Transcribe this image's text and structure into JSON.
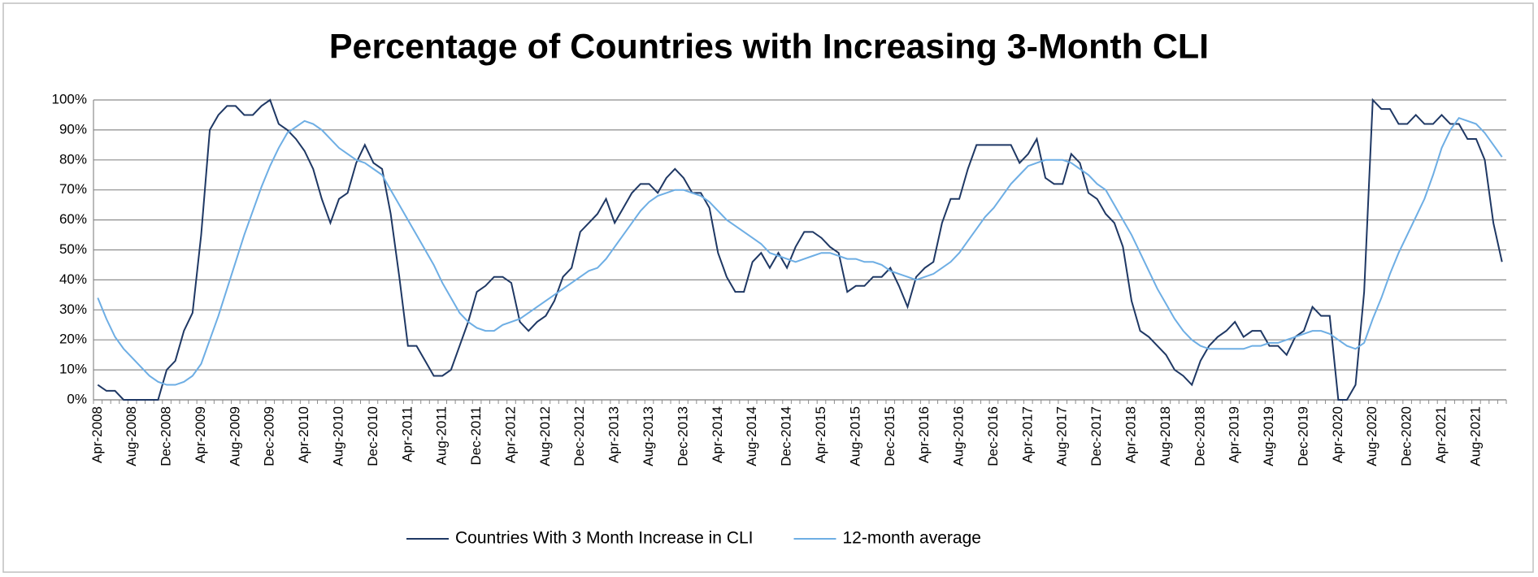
{
  "chart_data": {
    "type": "line",
    "title": "Percentage of Countries with Increasing 3-Month CLI",
    "categories": [
      "Apr-2008",
      null,
      null,
      null,
      "Aug-2008",
      null,
      null,
      null,
      "Dec-2008",
      null,
      null,
      null,
      "Apr-2009",
      null,
      null,
      null,
      "Aug-2009",
      null,
      null,
      null,
      "Dec-2009",
      null,
      null,
      null,
      "Apr-2010",
      null,
      null,
      null,
      "Aug-2010",
      null,
      null,
      null,
      "Dec-2010",
      null,
      null,
      null,
      "Apr-2011",
      null,
      null,
      null,
      "Aug-2011",
      null,
      null,
      null,
      "Dec-2011",
      null,
      null,
      null,
      "Apr-2012",
      null,
      null,
      null,
      "Aug-2012",
      null,
      null,
      null,
      "Dec-2012",
      null,
      null,
      null,
      "Apr-2013",
      null,
      null,
      null,
      "Aug-2013",
      null,
      null,
      null,
      "Dec-2013",
      null,
      null,
      null,
      "Apr-2014",
      null,
      null,
      null,
      "Aug-2014",
      null,
      null,
      null,
      "Dec-2014",
      null,
      null,
      null,
      "Apr-2015",
      null,
      null,
      null,
      "Aug-2015",
      null,
      null,
      null,
      "Dec-2015",
      null,
      null,
      null,
      "Apr-2016",
      null,
      null,
      null,
      "Aug-2016",
      null,
      null,
      null,
      "Dec-2016",
      null,
      null,
      null,
      "Apr-2017",
      null,
      null,
      null,
      "Aug-2017",
      null,
      null,
      null,
      "Dec-2017",
      null,
      null,
      null,
      "Apr-2018",
      null,
      null,
      null,
      "Aug-2018",
      null,
      null,
      null,
      "Dec-2018",
      null,
      null,
      null,
      "Apr-2019",
      null,
      null,
      null,
      "Aug-2019",
      null,
      null,
      null,
      "Dec-2019",
      null,
      null,
      null,
      "Apr-2020",
      null,
      null,
      null,
      "Aug-2020",
      null,
      null,
      null,
      "Dec-2020",
      null,
      null,
      null,
      "Apr-2021",
      null,
      null,
      null,
      "Aug-2021",
      null,
      null,
      null
    ],
    "series": [
      {
        "name": "Countries With 3 Month Increase in CLI",
        "color": "#1f3864",
        "values": [
          5,
          3,
          3,
          0,
          0,
          0,
          0,
          0,
          10,
          13,
          23,
          29,
          55,
          90,
          95,
          98,
          98,
          95,
          95,
          98,
          100,
          92,
          90,
          87,
          83,
          77,
          67,
          59,
          67,
          69,
          79,
          85,
          79,
          77,
          62,
          41,
          18,
          18,
          13,
          8,
          8,
          10,
          18,
          26,
          36,
          38,
          41,
          41,
          39,
          26,
          23,
          26,
          28,
          33,
          41,
          44,
          56,
          59,
          62,
          67,
          59,
          64,
          69,
          72,
          72,
          69,
          74,
          77,
          74,
          69,
          69,
          64,
          49,
          41,
          36,
          36,
          46,
          49,
          44,
          49,
          44,
          51,
          56,
          56,
          54,
          51,
          49,
          36,
          38,
          38,
          41,
          41,
          44,
          38,
          31,
          41,
          44,
          46,
          59,
          67,
          67,
          77,
          85,
          85,
          85,
          85,
          85,
          79,
          82,
          87,
          74,
          72,
          72,
          82,
          79,
          69,
          67,
          62,
          59,
          51,
          33,
          23,
          21,
          18,
          15,
          10,
          8,
          5,
          13,
          18,
          21,
          23,
          26,
          21,
          23,
          23,
          18,
          18,
          15,
          21,
          23,
          31,
          28,
          28,
          0,
          0,
          5,
          36,
          100,
          97,
          97,
          92,
          92,
          95,
          92,
          92,
          95,
          92,
          92,
          87,
          87,
          80,
          59,
          46
        ]
      },
      {
        "name": "12-month average",
        "color": "#6eaee4",
        "values": [
          34,
          27,
          21,
          17,
          14,
          11,
          8,
          6,
          5,
          5,
          6,
          8,
          12,
          20,
          28,
          37,
          46,
          55,
          63,
          71,
          78,
          84,
          89,
          91,
          93,
          92,
          90,
          87,
          84,
          82,
          80,
          79,
          77,
          75,
          70,
          65,
          60,
          55,
          50,
          45,
          39,
          34,
          29,
          26,
          24,
          23,
          23,
          25,
          26,
          27,
          29,
          31,
          33,
          35,
          37,
          39,
          41,
          43,
          44,
          47,
          51,
          55,
          59,
          63,
          66,
          68,
          69,
          70,
          70,
          69,
          68,
          66,
          63,
          60,
          58,
          56,
          54,
          52,
          49,
          48,
          47,
          46,
          47,
          48,
          49,
          49,
          48,
          47,
          47,
          46,
          46,
          45,
          43,
          42,
          41,
          40,
          41,
          42,
          44,
          46,
          49,
          53,
          57,
          61,
          64,
          68,
          72,
          75,
          78,
          79,
          80,
          80,
          80,
          79,
          77,
          75,
          72,
          70,
          65,
          60,
          55,
          49,
          43,
          37,
          32,
          27,
          23,
          20,
          18,
          17,
          17,
          17,
          17,
          17,
          18,
          18,
          19,
          19,
          20,
          21,
          22,
          23,
          23,
          22,
          20,
          18,
          17,
          19,
          27,
          34,
          42,
          49,
          55,
          61,
          67,
          75,
          84,
          90,
          94,
          93,
          92,
          89,
          85,
          81
        ]
      }
    ],
    "ylim": [
      0,
      100
    ],
    "yticks": [
      {
        "value": 0,
        "label": "0%"
      },
      {
        "value": 10,
        "label": "10%"
      },
      {
        "value": 20,
        "label": "20%"
      },
      {
        "value": 30,
        "label": "30%"
      },
      {
        "value": 40,
        "label": "40%"
      },
      {
        "value": 50,
        "label": "50%"
      },
      {
        "value": 60,
        "label": "60%"
      },
      {
        "value": 70,
        "label": "70%"
      },
      {
        "value": 80,
        "label": "80%"
      },
      {
        "value": 90,
        "label": "90%"
      },
      {
        "value": 100,
        "label": "100%"
      }
    ],
    "grid": true,
    "legend": "bottom"
  }
}
